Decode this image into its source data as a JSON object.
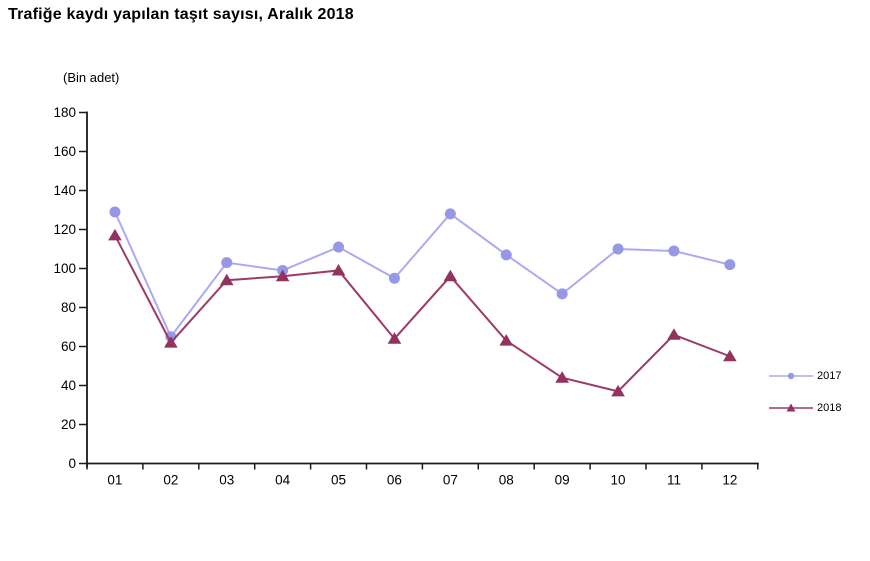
{
  "page": {
    "title": "Trafiğe kaydı yapılan taşıt sayısı, Aralık 2018",
    "unit_label": "(Bin adet)"
  },
  "chart_data": {
    "type": "line",
    "title": "Trafiğe kaydı yapılan taşıt sayısı, Aralık 2018",
    "ylabel": "(Bin adet)",
    "xlabel": "",
    "categories": [
      "01",
      "02",
      "03",
      "04",
      "05",
      "06",
      "07",
      "08",
      "09",
      "10",
      "11",
      "12"
    ],
    "y_ticks": [
      0,
      20,
      40,
      60,
      80,
      100,
      120,
      140,
      160,
      180
    ],
    "ylim": [
      0,
      180
    ],
    "grid": false,
    "legend_position": "right",
    "axis_color": "#1a1a1a",
    "series": [
      {
        "name": "2017",
        "marker": "circle",
        "line_color": "#ABAAF2",
        "marker_color": "#9797E8",
        "values": [
          129,
          65,
          103,
          99,
          111,
          95,
          128,
          107,
          87,
          110,
          109,
          102
        ]
      },
      {
        "name": "2018",
        "marker": "triangle",
        "line_color": "#9E3A69",
        "marker_color": "#92325E",
        "values": [
          117,
          62,
          94,
          96,
          99,
          64,
          96,
          63,
          44,
          37,
          66,
          55
        ]
      }
    ]
  }
}
